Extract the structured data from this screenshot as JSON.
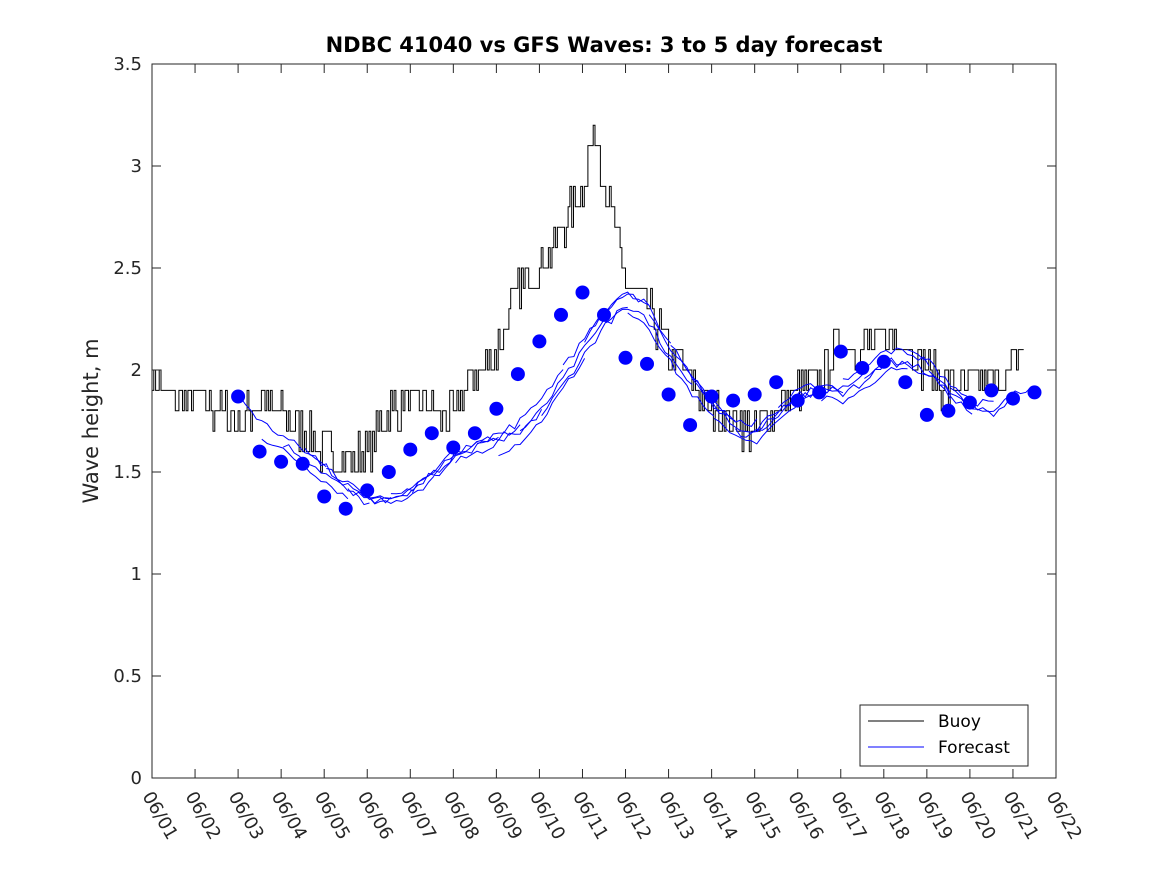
{
  "chart_data": {
    "type": "line",
    "title": "NDBC 41040 vs GFS Waves: 3 to 5 day forecast",
    "xlabel": "",
    "ylabel": "Wave height, m",
    "ylim": [
      0,
      3.5
    ],
    "yticks": [
      "0",
      "0.5",
      "1",
      "1.5",
      "2",
      "2.5",
      "3",
      "3.5"
    ],
    "xlim": [
      "06/01",
      "06/22"
    ],
    "xticks": [
      "06/01",
      "06/02",
      "06/03",
      "06/04",
      "06/05",
      "06/06",
      "06/07",
      "06/08",
      "06/09",
      "06/10",
      "06/11",
      "06/12",
      "06/13",
      "06/14",
      "06/15",
      "06/16",
      "06/17",
      "06/18",
      "06/19",
      "06/20",
      "06/21",
      "06/22"
    ],
    "grid": false,
    "legend_position": "bottom-right",
    "series": [
      {
        "name": "Buoy",
        "color": "#000000",
        "style": "step-line",
        "x_day": [
          0.0,
          0.5,
          1.0,
          1.5,
          2.0,
          2.5,
          3.0,
          3.5,
          4.0,
          4.5,
          5.0,
          5.5,
          6.0,
          6.5,
          7.0,
          7.5,
          8.0,
          8.5,
          9.0,
          9.5,
          10.0,
          10.3,
          10.5,
          10.75,
          11.0,
          11.5,
          12.0,
          12.5,
          13.0,
          13.5,
          14.0,
          14.5,
          15.0,
          15.5,
          16.0,
          16.5,
          17.0,
          17.5,
          18.0,
          18.5,
          19.0,
          19.5,
          20.0,
          20.25
        ],
        "y": [
          1.95,
          1.85,
          1.85,
          1.8,
          1.75,
          1.85,
          1.8,
          1.7,
          1.6,
          1.55,
          1.6,
          1.8,
          1.85,
          1.8,
          1.75,
          2.0,
          2.1,
          2.4,
          2.5,
          2.7,
          2.9,
          3.2,
          2.9,
          2.7,
          2.4,
          2.3,
          2.1,
          1.95,
          1.8,
          1.75,
          1.7,
          1.8,
          1.9,
          1.95,
          2.15,
          2.1,
          2.15,
          2.15,
          2.0,
          1.9,
          1.9,
          1.95,
          2.0,
          2.1
        ],
        "noise": 0.1
      },
      {
        "name": "Forecast",
        "color": "#0000ff",
        "style": "line",
        "x_day": [
          2.0,
          2.5,
          3.0,
          3.5,
          4.0,
          4.5,
          5.0,
          5.5,
          6.0,
          6.5,
          7.0,
          7.5,
          8.0,
          8.5,
          9.0,
          9.5,
          10.0,
          10.5,
          11.0,
          11.5,
          12.0,
          12.5,
          13.0,
          13.5,
          14.0,
          14.5,
          15.0,
          15.5,
          16.0,
          16.5,
          17.0,
          17.5,
          18.0,
          18.5,
          19.0,
          19.5,
          20.0,
          20.5,
          21.0
        ],
        "y": [
          1.85,
          1.72,
          1.65,
          1.58,
          1.5,
          1.42,
          1.35,
          1.33,
          1.38,
          1.45,
          1.55,
          1.6,
          1.65,
          1.7,
          1.8,
          1.95,
          2.1,
          2.25,
          2.35,
          2.28,
          2.1,
          1.95,
          1.82,
          1.72,
          1.7,
          1.8,
          1.88,
          1.92,
          1.9,
          1.95,
          2.05,
          2.05,
          2.0,
          1.9,
          1.8,
          1.78,
          1.85,
          1.9,
          1.95
        ]
      },
      {
        "name": "",
        "color": "#0000ff",
        "style": "markers",
        "x_day": [
          2.0,
          2.5,
          3.0,
          3.5,
          4.0,
          4.5,
          5.0,
          5.5,
          6.0,
          6.5,
          7.0,
          7.5,
          8.0,
          8.5,
          9.0,
          9.5,
          10.0,
          10.5,
          11.0,
          11.5,
          12.0,
          12.5,
          13.0,
          13.5,
          14.0,
          14.5,
          15.0,
          15.5,
          16.0,
          16.5,
          17.0,
          17.5,
          18.0,
          18.5,
          19.0,
          19.5,
          20.0,
          20.5
        ],
        "y": [
          1.87,
          1.6,
          1.55,
          1.54,
          1.38,
          1.32,
          1.41,
          1.5,
          1.61,
          1.69,
          1.62,
          1.69,
          1.81,
          1.98,
          2.14,
          2.27,
          2.38,
          2.27,
          2.06,
          2.03,
          1.88,
          1.73,
          1.87,
          1.85,
          1.88,
          1.94,
          1.85,
          1.89,
          2.09,
          2.01,
          2.04,
          1.94,
          1.78,
          1.8,
          1.84,
          1.9,
          1.86,
          1.89
        ]
      }
    ],
    "legend": [
      {
        "label": "Buoy",
        "color": "#000000"
      },
      {
        "label": "Forecast",
        "color": "#0000ff"
      }
    ]
  }
}
